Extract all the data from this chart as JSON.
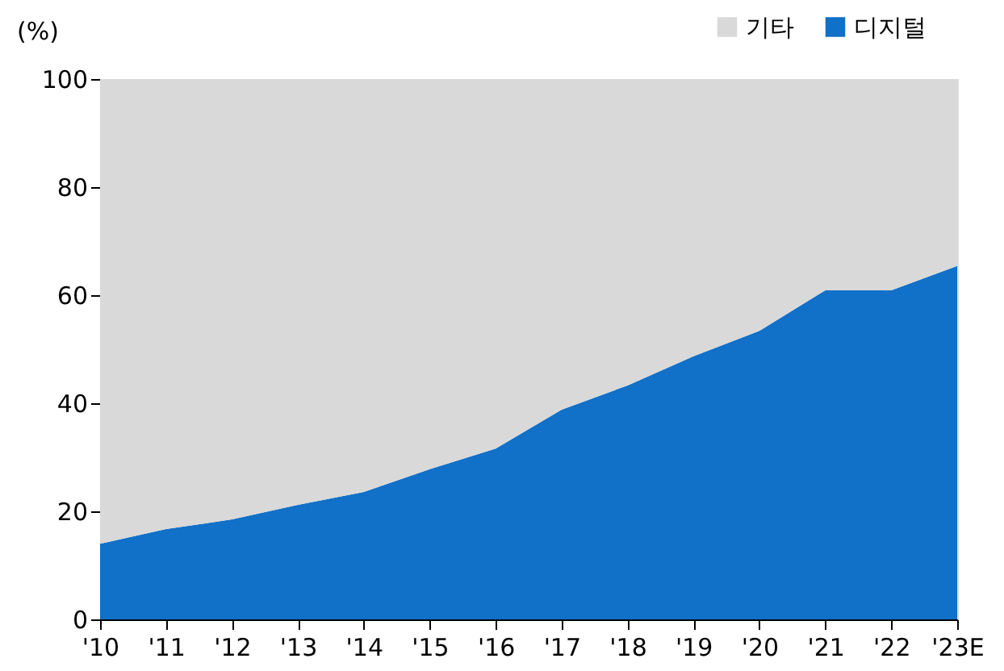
{
  "chart_data": {
    "type": "area",
    "stacked": true,
    "ylabel": "(%)",
    "categories": [
      "'10",
      "'11",
      "'12",
      "'13",
      "'14",
      "'15",
      "'16",
      "'17",
      "'18",
      "'19",
      "'20",
      "'21",
      "'22",
      "'23E"
    ],
    "series": [
      {
        "name": "디지털",
        "color": "#1170c8",
        "values": [
          14,
          16.7,
          18.5,
          21.2,
          23.6,
          27.8,
          31.6,
          38.8,
          43.3,
          48.7,
          53.4,
          60.9,
          60.9,
          65.4
        ]
      },
      {
        "name": "기타",
        "color": "#d9d9d9",
        "values": [
          86,
          83.3,
          81.5,
          78.8,
          76.4,
          72.2,
          68.4,
          61.2,
          56.7,
          51.3,
          46.6,
          39.1,
          39.1,
          34.6
        ]
      }
    ],
    "ylim": [
      0,
      100
    ],
    "yticks": [
      0,
      20,
      40,
      60,
      80,
      100
    ],
    "grid": false,
    "legend": "top right"
  }
}
